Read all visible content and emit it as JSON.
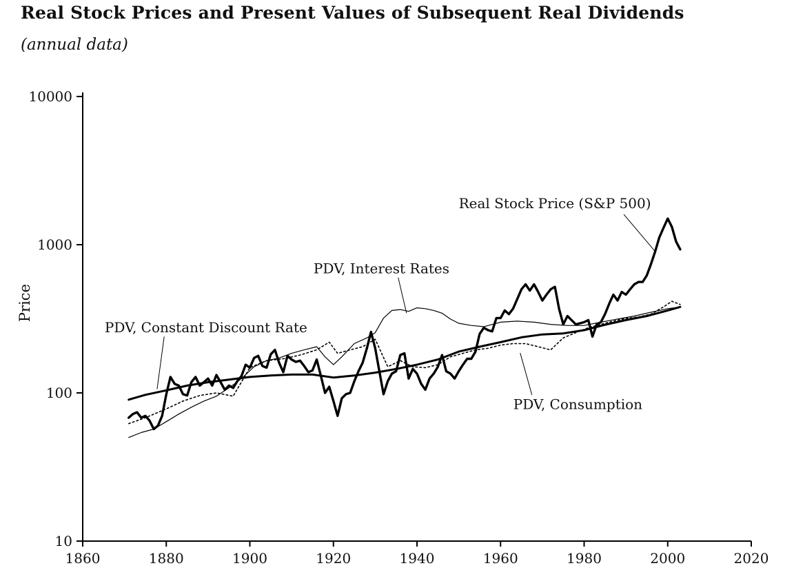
{
  "title": "Real Stock Prices and Present Values of Subsequent Real Dividends",
  "subtitle": "(annual data)",
  "chart_data": {
    "type": "line",
    "title": "Real Stock Prices and Present Values of Subsequent Real Dividends",
    "subtitle": "(annual data)",
    "xlabel": "",
    "ylabel": "Price",
    "y_scale": "log",
    "x_range": [
      1860,
      2020
    ],
    "y_range": [
      10,
      10000
    ],
    "x_ticks": [
      1860,
      1880,
      1900,
      1920,
      1940,
      1960,
      1980,
      2000,
      2020
    ],
    "y_ticks": [
      10,
      100,
      1000,
      10000
    ],
    "grid": false,
    "legend_position": "inline-annotations",
    "colors": {
      "line": "#000000",
      "background": "#ffffff"
    },
    "series": [
      {
        "name": "Real Stock Price (S&P 500)",
        "style": {
          "width": 3.4,
          "dash": ""
        },
        "start": 1871,
        "step": 1,
        "values": [
          68,
          72,
          74,
          68,
          70,
          65,
          57,
          60,
          70,
          98,
          128,
          115,
          112,
          98,
          96,
          118,
          128,
          112,
          118,
          125,
          112,
          132,
          118,
          105,
          112,
          108,
          120,
          130,
          155,
          148,
          172,
          178,
          152,
          148,
          182,
          195,
          160,
          138,
          178,
          168,
          162,
          165,
          152,
          138,
          142,
          168,
          130,
          100,
          110,
          88,
          70,
          92,
          98,
          100,
          120,
          140,
          160,
          200,
          258,
          200,
          140,
          98,
          120,
          135,
          140,
          180,
          185,
          125,
          145,
          135,
          115,
          105,
          125,
          135,
          150,
          180,
          140,
          135,
          125,
          140,
          155,
          170,
          170,
          190,
          250,
          275,
          265,
          260,
          320,
          320,
          360,
          340,
          370,
          430,
          500,
          540,
          490,
          540,
          480,
          420,
          460,
          500,
          520,
          370,
          290,
          330,
          310,
          290,
          295,
          300,
          310,
          240,
          290,
          300,
          340,
          400,
          460,
          420,
          480,
          460,
          500,
          540,
          560,
          560,
          620,
          740,
          900,
          1120,
          1300,
          1500,
          1320,
          1050,
          930
        ]
      },
      {
        "name": "PDV, Constant Discount Rate",
        "style": {
          "width": 3.0,
          "dash": ""
        },
        "years": [
          1871,
          1875,
          1880,
          1885,
          1890,
          1895,
          1900,
          1905,
          1910,
          1915,
          1920,
          1925,
          1930,
          1935,
          1940,
          1945,
          1950,
          1955,
          1960,
          1965,
          1970,
          1975,
          1980,
          1985,
          1990,
          1995,
          2000,
          2003
        ],
        "values": [
          90,
          97,
          104,
          112,
          118,
          123,
          128,
          131,
          133,
          133,
          127,
          131,
          137,
          145,
          155,
          168,
          190,
          205,
          220,
          237,
          248,
          252,
          265,
          288,
          310,
          330,
          360,
          380
        ]
      },
      {
        "name": "PDV, Interest Rates",
        "style": {
          "width": 1.2,
          "dash": ""
        },
        "years": [
          1871,
          1874,
          1877,
          1880,
          1883,
          1886,
          1889,
          1892,
          1895,
          1898,
          1901,
          1904,
          1907,
          1910,
          1913,
          1916,
          1918,
          1920,
          1922,
          1925,
          1928,
          1930,
          1932,
          1934,
          1936,
          1938,
          1940,
          1942,
          1944,
          1946,
          1948,
          1950,
          1953,
          1956,
          1960,
          1964,
          1968,
          1972,
          1976,
          1980,
          1984,
          1988,
          1992,
          1996,
          2000,
          2003
        ],
        "values": [
          50,
          54,
          57,
          64,
          72,
          80,
          88,
          95,
          108,
          125,
          150,
          165,
          172,
          185,
          195,
          205,
          175,
          155,
          175,
          215,
          235,
          255,
          320,
          360,
          365,
          355,
          375,
          370,
          360,
          345,
          315,
          295,
          285,
          280,
          300,
          305,
          300,
          290,
          285,
          285,
          300,
          315,
          330,
          350,
          370,
          380
        ]
      },
      {
        "name": "PDV, Consumption",
        "style": {
          "width": 1.6,
          "dash": "2.5 3.5"
        },
        "years": [
          1871,
          1875,
          1880,
          1884,
          1888,
          1892,
          1896,
          1900,
          1904,
          1908,
          1912,
          1916,
          1919,
          1921,
          1924,
          1927,
          1930,
          1933,
          1936,
          1939,
          1942,
          1945,
          1948,
          1951,
          1954,
          1957,
          1960,
          1963,
          1966,
          1969,
          1972,
          1975,
          1978,
          1981,
          1984,
          1987,
          1990,
          1993,
          1996,
          1999,
          2001,
          2003
        ],
        "values": [
          62,
          68,
          78,
          88,
          96,
          100,
          95,
          148,
          165,
          170,
          180,
          195,
          220,
          185,
          195,
          205,
          230,
          150,
          165,
          150,
          148,
          155,
          175,
          185,
          195,
          200,
          210,
          215,
          215,
          205,
          195,
          235,
          255,
          275,
          290,
          305,
          318,
          325,
          340,
          380,
          415,
          395
        ]
      }
    ],
    "annotations": [
      {
        "text": "Real Stock Price (S&P 500)",
        "tx": 1973.0,
        "ty": 1900,
        "lx1": 1989.5,
        "ly1": 1600,
        "lx2": 1997.0,
        "ly2": 900
      },
      {
        "text": "PDV, Interest Rates",
        "tx": 1931.5,
        "ty": 690,
        "lx1": 1935.5,
        "ly1": 600,
        "lx2": 1937.5,
        "ly2": 345
      },
      {
        "text": "PDV, Constant Discount Rate",
        "tx": 1889.5,
        "ty": 277,
        "lx1": 1879.5,
        "ly1": 240,
        "lx2": 1877.8,
        "ly2": 106
      },
      {
        "text": "PDV, Consumption",
        "tx": 1978.5,
        "ty": 84,
        "lx1": 1967.5,
        "ly1": 97,
        "lx2": 1964.7,
        "ly2": 186
      }
    ]
  }
}
